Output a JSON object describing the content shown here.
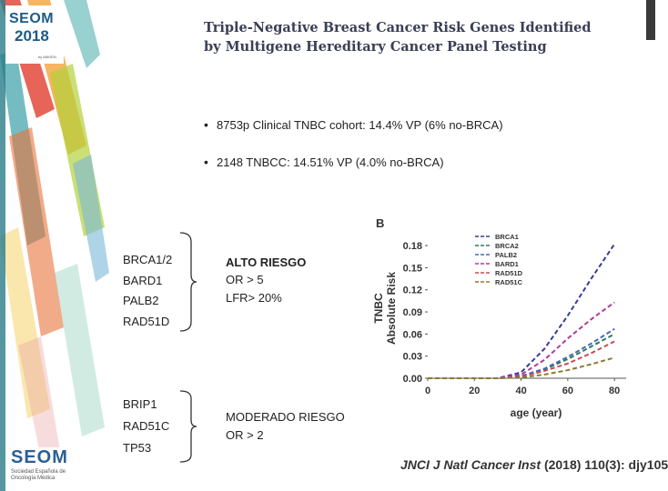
{
  "logo": {
    "line1": "SEOM",
    "line2": "2018",
    "line3": "by AMGEN"
  },
  "title": "Triple-Negative Breast Cancer Risk Genes Identified by Multigene Hereditary Cancer Panel Testing",
  "bullets": [
    "8753p Clinical TNBC cohort: 14.4% VP (6% no-BRCA)",
    "2148 TNBCC: 14.51% VP (4.0% no-BRCA)"
  ],
  "groups": [
    {
      "genes": [
        "BRCA1/2",
        "BARD1",
        "PALB2",
        "RAD51D"
      ],
      "risk": [
        "ALTO RIESGO",
        "OR > 5",
        "LFR> 20%"
      ]
    },
    {
      "genes": [
        "BRIP1",
        "RAD51C",
        "TP53"
      ],
      "risk": [
        "MODERADO RIESGO",
        "OR > 2"
      ]
    }
  ],
  "seom_bottom": {
    "big": "SEOM",
    "small": "Sociedad Española de Oncología Médica"
  },
  "citation": {
    "journal": "JNCI J Natl Cancer Inst",
    "rest": " (2018) 110(3): djy105"
  },
  "chart_data": {
    "type": "line",
    "panel_label": "B",
    "xlabel": "age (year)",
    "ylabel": "TNBC Absolute Risk",
    "xlim": [
      0,
      85
    ],
    "ylim": [
      0,
      0.19
    ],
    "xticks": [
      0,
      20,
      40,
      60,
      80
    ],
    "yticks": [
      0.0,
      0.03,
      0.06,
      0.09,
      0.12,
      0.15,
      0.18
    ],
    "ytick_labels": [
      "0.00",
      "0.03",
      "0.06",
      "0.09",
      "0.12",
      "0.15",
      "0.18"
    ],
    "legend_position": "top-right",
    "x": [
      0,
      20,
      30,
      40,
      50,
      60,
      70,
      80
    ],
    "series": [
      {
        "name": "BRCA1",
        "color": "#3a3a9a",
        "values": [
          0,
          0,
          0,
          0.008,
          0.04,
          0.085,
          0.135,
          0.182
        ]
      },
      {
        "name": "BRCA2",
        "color": "#2f7a57",
        "values": [
          0,
          0,
          0,
          0.003,
          0.012,
          0.026,
          0.043,
          0.06
        ]
      },
      {
        "name": "PALB2",
        "color": "#4a66b8",
        "values": [
          0,
          0,
          0,
          0.003,
          0.013,
          0.029,
          0.047,
          0.067
        ]
      },
      {
        "name": "BARD1",
        "color": "#b23a9b",
        "values": [
          0,
          0,
          0,
          0.005,
          0.025,
          0.054,
          0.08,
          0.103
        ]
      },
      {
        "name": "RAD51D",
        "color": "#c84b55",
        "values": [
          0,
          0,
          0,
          0.002,
          0.01,
          0.02,
          0.034,
          0.05
        ]
      },
      {
        "name": "RAD51C",
        "color": "#8a7a30",
        "values": [
          0,
          0,
          0,
          0.001,
          0.005,
          0.011,
          0.019,
          0.028
        ]
      }
    ]
  }
}
